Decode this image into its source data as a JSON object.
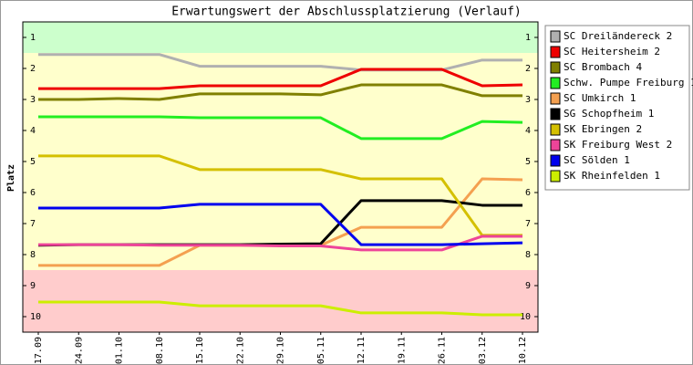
{
  "chart_data": {
    "type": "line",
    "title": "Erwartungswert der Abschlussplatzierung (Verlauf)",
    "y_label": "Platz",
    "categories": [
      "17.09",
      "24.09",
      "01.10",
      "08.10",
      "15.10",
      "22.10",
      "29.10",
      "05.11",
      "12.11",
      "19.11",
      "26.11",
      "03.12",
      "10.12"
    ],
    "ylim": [
      10.5,
      0.5
    ],
    "yticks": [
      1,
      2,
      3,
      4,
      5,
      6,
      7,
      8,
      9,
      10
    ],
    "zones": [
      {
        "from": 0.5,
        "to": 1.5,
        "color": "#ccffcc"
      },
      {
        "from": 1.5,
        "to": 8.5,
        "color": "#ffffcc"
      },
      {
        "from": 8.5,
        "to": 10.5,
        "color": "#ffcccc"
      }
    ],
    "series": [
      {
        "name": "SC Dreiländereck 2",
        "color": "#b0b0b0",
        "values": [
          1.55,
          1.55,
          1.55,
          1.55,
          1.93,
          1.93,
          1.93,
          1.93,
          2.05,
          2.05,
          2.05,
          1.73,
          1.73
        ]
      },
      {
        "name": "SC Heitersheim 2",
        "color": "#ee0000",
        "values": [
          2.65,
          2.65,
          2.65,
          2.65,
          2.56,
          2.56,
          2.56,
          2.56,
          2.03,
          2.03,
          2.03,
          2.56,
          2.53
        ]
      },
      {
        "name": "SC Brombach 4",
        "color": "#808000",
        "values": [
          3.0,
          3.0,
          2.97,
          3.0,
          2.82,
          2.82,
          2.82,
          2.85,
          2.53,
          2.53,
          2.53,
          2.88,
          2.88
        ]
      },
      {
        "name": "Schw. Pumpe Freiburg 1",
        "color": "#22ee22",
        "values": [
          3.56,
          3.56,
          3.56,
          3.56,
          3.59,
          3.59,
          3.59,
          3.59,
          4.26,
          4.26,
          4.26,
          3.71,
          3.74
        ]
      },
      {
        "name": "SC Umkirch 1",
        "color": "#f4a050",
        "values": [
          8.35,
          8.35,
          8.35,
          8.35,
          7.7,
          7.7,
          7.7,
          7.7,
          7.12,
          7.12,
          7.12,
          5.56,
          5.59
        ]
      },
      {
        "name": "SG Schopfheim 1",
        "color": "#000000",
        "values": [
          7.7,
          7.68,
          7.68,
          7.68,
          7.68,
          7.68,
          7.66,
          7.65,
          6.26,
          6.26,
          6.26,
          6.41,
          6.41
        ]
      },
      {
        "name": "SK Ebringen 2",
        "color": "#d4c000",
        "values": [
          4.82,
          4.82,
          4.82,
          4.82,
          5.26,
          5.26,
          5.26,
          5.26,
          5.56,
          5.56,
          5.56,
          7.38,
          7.38
        ]
      },
      {
        "name": "SK Freiburg West 2",
        "color": "#ee4499",
        "values": [
          7.68,
          7.68,
          7.68,
          7.7,
          7.7,
          7.7,
          7.72,
          7.72,
          7.85,
          7.85,
          7.85,
          7.41,
          7.41
        ]
      },
      {
        "name": "SC Sölden 1",
        "color": "#0000ee",
        "values": [
          6.5,
          6.5,
          6.5,
          6.5,
          6.38,
          6.38,
          6.38,
          6.38,
          7.68,
          7.68,
          7.68,
          7.65,
          7.62
        ]
      },
      {
        "name": "SK Rheinfelden 1",
        "color": "#ccee00",
        "values": [
          9.53,
          9.53,
          9.53,
          9.53,
          9.65,
          9.65,
          9.65,
          9.65,
          9.88,
          9.88,
          9.88,
          9.94,
          9.94
        ]
      }
    ]
  }
}
